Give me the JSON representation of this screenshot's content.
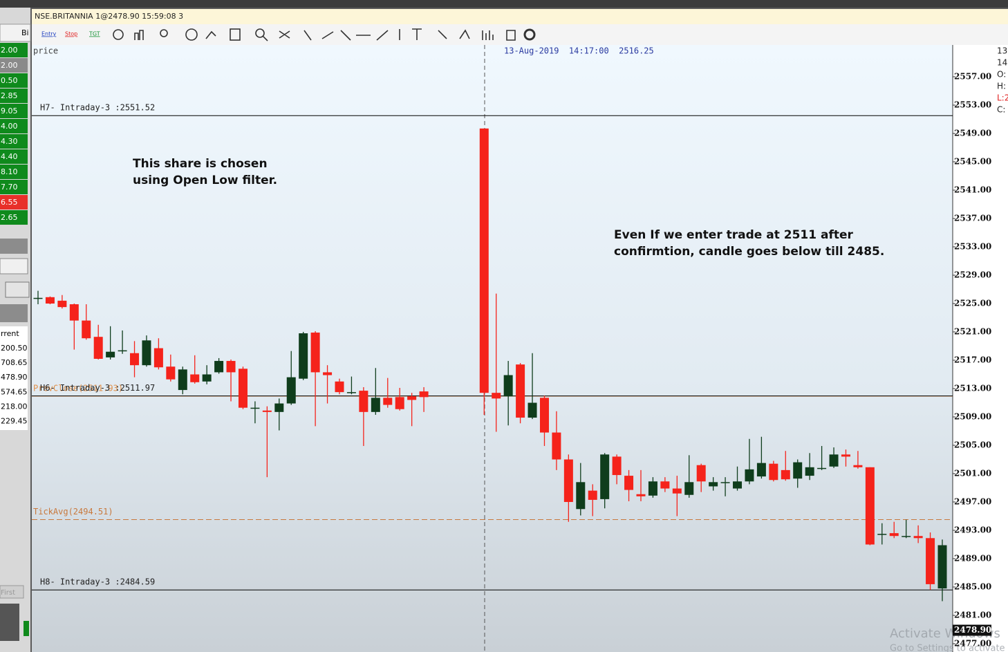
{
  "window": {
    "title": "NSE.BRITANNIA 1@2478.90 15:59:08 3",
    "tab": "Bi"
  },
  "toolbar": [
    "Entry",
    "Stop",
    "TGT"
  ],
  "left_panel": {
    "quotes": [
      {
        "text": "2.00",
        "color": "#0f8a1c"
      },
      {
        "text": "2.00",
        "color": "#8a8a8a"
      },
      {
        "text": "0.50",
        "color": "#0f8a1c"
      },
      {
        "text": "2.85",
        "color": "#0f8a1c"
      },
      {
        "text": "9.05",
        "color": "#0f8a1c"
      },
      {
        "text": "4.00",
        "color": "#0f8a1c"
      },
      {
        "text": "4.30",
        "color": "#0f8a1c"
      },
      {
        "text": "4.40",
        "color": "#0f8a1c"
      },
      {
        "text": "8.10",
        "color": "#0f8a1c"
      },
      {
        "text": "7.70",
        "color": "#0f8a1c"
      },
      {
        "text": "6.55",
        "color": "#e8302a"
      },
      {
        "text": "2.65",
        "color": "#0f8a1c"
      }
    ],
    "header": "rrent",
    "rows": [
      "200.50",
      "708.65",
      "478.90",
      "574.65",
      "218.00",
      "229.45"
    ],
    "button": "First"
  },
  "right_panel": [
    "13",
    "14",
    "O:",
    "H:",
    "L:2",
    "C:"
  ],
  "watermark": [
    "Activate Windows",
    "Go to Settings to activate Windows."
  ],
  "chart_data": {
    "type": "candlestick",
    "y_label": "price",
    "crosshair_label": "13-Aug-2019  14:17:00  2516.25",
    "annotations": [
      [
        "This share is chosen",
        "using Open Low filter."
      ],
      [
        "Even If we enter trade at 2511 after",
        "confirmtion, candle goes below till 2485."
      ]
    ],
    "up_color": "#0f3d1c",
    "down_color": "#f5231b",
    "ylim": [
      2475.83,
      2561.49
    ],
    "yticks": [
      {
        "value": 2557,
        "label": "2557.00"
      },
      {
        "value": 2553,
        "label": "2553.00"
      },
      {
        "value": 2549,
        "label": "2549.00"
      },
      {
        "value": 2545,
        "label": "2545.00"
      },
      {
        "value": 2541,
        "label": "2541.00"
      },
      {
        "value": 2537,
        "label": "2537.00"
      },
      {
        "value": 2533,
        "label": "2533.00"
      },
      {
        "value": 2529,
        "label": "2529.00"
      },
      {
        "value": 2525,
        "label": "2525.00"
      },
      {
        "value": 2521,
        "label": "2521.00"
      },
      {
        "value": 2517,
        "label": "2517.00"
      },
      {
        "value": 2513,
        "label": "2513.00"
      },
      {
        "value": 2509,
        "label": "2509.00"
      },
      {
        "value": 2505,
        "label": "2505.00"
      },
      {
        "value": 2501,
        "label": "2501.00"
      },
      {
        "value": 2497,
        "label": "2497.00"
      },
      {
        "value": 2493,
        "label": "2493.00"
      },
      {
        "value": 2489,
        "label": "2489.00"
      },
      {
        "value": 2485,
        "label": "2485.00"
      },
      {
        "value": 2481,
        "label": "2481.00"
      },
      {
        "value": 2477,
        "label": "2477.00"
      }
    ],
    "last_price": {
      "value": 2478.9,
      "label": "2478.90"
    },
    "levels": [
      {
        "label": "H7- Intraday-3 :2551.52",
        "value": 2551.52,
        "color": "#000000",
        "dashed": false
      },
      {
        "label": "PrevClose(2511.93)",
        "value": 2511.93,
        "color": "#e0904a",
        "dashed": false
      },
      {
        "label": "H6- Intraday-3 :2511.97",
        "value": 2511.97,
        "color": "#000000",
        "dashed": false
      },
      {
        "label": "TickAvg(2494.51)",
        "value": 2494.51,
        "color": "#c8783c",
        "dashed": true
      },
      {
        "label": "H8- Intraday-3 :2484.59",
        "value": 2484.59,
        "color": "#000000",
        "dashed": false
      }
    ],
    "open": [
      2525.8,
      2525.9,
      2525.4,
      2524.9,
      2522.6,
      2520.3,
      2517.4,
      2518.4,
      2518.0,
      2516.3,
      2518.7,
      2516.1,
      2512.8,
      2515.0,
      2514.0,
      2515.3,
      2516.9,
      2515.8,
      2510.3,
      2509.9,
      2509.7,
      2510.9,
      2514.4,
      2520.9,
      2515.3,
      2514.0,
      2512.5,
      2512.7,
      2509.7,
      2511.7,
      2511.8,
      2511.9,
      2512.6,
      null,
      null,
      null,
      null,
      2549.7,
      2512.4,
      2511.9,
      2516.4,
      2508.9,
      2511.7,
      2506.8,
      2503.0,
      2496.0,
      2498.6,
      2497.4,
      2503.4,
      2500.7,
      2498.1,
      2497.9,
      2499.9,
      2498.9,
      2498.0,
      2502.2,
      2499.2,
      2499.8,
      2498.9,
      2499.9,
      2500.6,
      2502.4,
      2501.5,
      2500.3,
      2500.7,
      2501.8,
      2502.0,
      2503.7,
      2502.2,
      2501.9,
      2492.5,
      2492.6,
      2492.2,
      2492.2,
      2491.9,
      2484.8
    ],
    "high": [
      2526.8,
      2526.0,
      2526.2,
      2525.0,
      2524.9,
      2522.0,
      2521.8,
      2521.2,
      2519.7,
      2520.5,
      2520.1,
      2517.8,
      2516.1,
      2517.7,
      2516.3,
      2517.3,
      2517.1,
      2516.1,
      2511.2,
      2510.5,
      2511.6,
      2518.3,
      2521.0,
      2521.1,
      2516.3,
      2514.4,
      2514.7,
      2513.2,
      2515.9,
      2514.5,
      2513.1,
      2512.4,
      2513.2,
      null,
      null,
      null,
      null,
      2549.7,
      2526.4,
      2516.9,
      2516.6,
      2518.0,
      2512.0,
      2509.8,
      2503.7,
      2502.5,
      2499.5,
      2503.9,
      2503.7,
      2501.5,
      2501.5,
      2500.5,
      2500.5,
      2500.7,
      2503.6,
      2502.4,
      2500.5,
      2500.5,
      2502.0,
      2505.9,
      2506.2,
      2502.8,
      2504.2,
      2503.0,
      2503.9,
      2504.9,
      2504.7,
      2504.4,
      2504.2,
      2501.9,
      2494.0,
      2494.2,
      2494.5,
      2493.7,
      2492.7,
      2491.7
    ],
    "low": [
      2524.9,
      2524.9,
      2524.3,
      2518.5,
      2519.9,
      2517.1,
      2517.1,
      2517.9,
      2514.6,
      2516.1,
      2515.7,
      2514.0,
      2512.2,
      2513.7,
      2513.6,
      2515.1,
      2511.2,
      2510.1,
      2508.1,
      2500.5,
      2507.1,
      2510.7,
      2514.2,
      2507.7,
      2510.9,
      2512.2,
      2512.2,
      2504.9,
      2509.3,
      2510.3,
      2509.9,
      2507.7,
      2509.7,
      null,
      null,
      null,
      null,
      2509.3,
      2506.9,
      2507.8,
      2508.1,
      2508.7,
      2504.9,
      2501.5,
      2494.2,
      2495.1,
      2495.0,
      2496.1,
      2499.5,
      2497.1,
      2497.1,
      2497.6,
      2498.4,
      2495.0,
      2497.6,
      2498.4,
      2498.6,
      2497.8,
      2498.6,
      2499.5,
      2500.3,
      2499.9,
      2500.0,
      2499.0,
      2500.1,
      2501.5,
      2501.8,
      2502.0,
      2501.7,
      2490.9,
      2491.0,
      2491.9,
      2491.9,
      2491.2,
      2484.6,
      2483.0
    ],
    "close": [
      2525.8,
      2525.0,
      2524.5,
      2522.6,
      2520.1,
      2517.2,
      2518.2,
      2518.4,
      2516.3,
      2519.8,
      2516.0,
      2514.3,
      2515.7,
      2513.9,
      2515.0,
      2516.9,
      2515.3,
      2510.3,
      2510.3,
      2509.7,
      2510.9,
      2514.6,
      2520.8,
      2515.3,
      2514.9,
      2512.5,
      2512.5,
      2509.7,
      2511.7,
      2510.7,
      2510.1,
      2511.4,
      2511.8,
      null,
      null,
      null,
      null,
      2512.4,
      2511.6,
      2514.9,
      2508.9,
      2511.0,
      2506.8,
      2503.0,
      2497.0,
      2499.8,
      2497.3,
      2503.7,
      2500.8,
      2498.7,
      2497.8,
      2499.9,
      2498.9,
      2498.2,
      2499.8,
      2499.9,
      2499.8,
      2499.8,
      2499.9,
      2501.6,
      2502.5,
      2500.1,
      2500.2,
      2502.6,
      2501.9,
      2501.8,
      2503.7,
      2503.4,
      2501.9,
      2491.0,
      2492.5,
      2492.2,
      2492.2,
      2491.9,
      2485.4,
      2490.9
    ]
  }
}
